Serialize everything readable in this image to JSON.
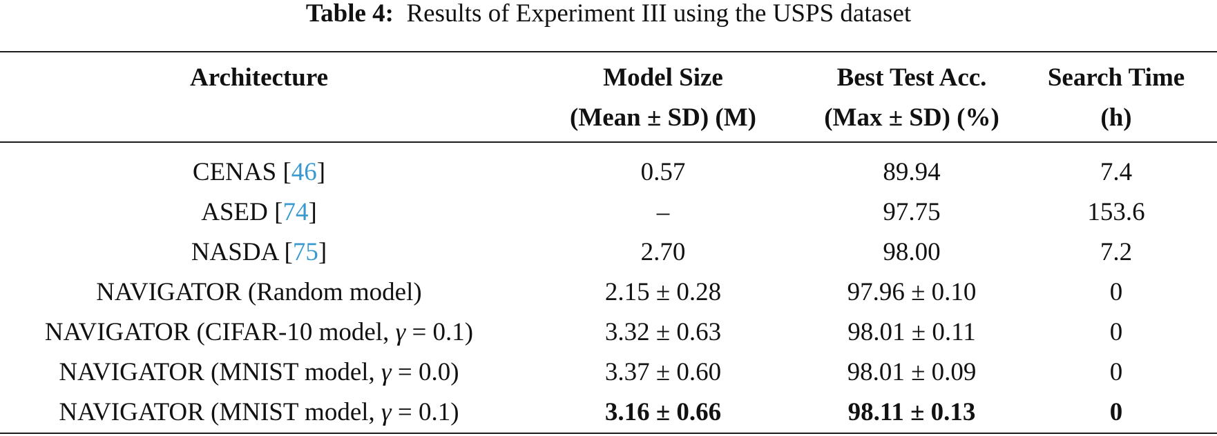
{
  "caption": {
    "label": "Table 4:",
    "text": "Results of Experiment III using the USPS dataset"
  },
  "headers": [
    {
      "line1": "Architecture",
      "line2": ""
    },
    {
      "line1": "Model Size",
      "line2": "(Mean ± SD) (M)"
    },
    {
      "line1": "Best Test Acc.",
      "line2": "(Max ± SD) (%)"
    },
    {
      "line1": "Search Time",
      "line2": "(h)"
    }
  ],
  "rows": [
    {
      "arch_name": "CENAS [",
      "cite": "46",
      "arch_suffix": "]",
      "model_size": "0.57",
      "best_acc": "89.94",
      "search_time": "7.4"
    },
    {
      "arch_name": "ASED [",
      "cite": "74",
      "arch_suffix": "]",
      "model_size": "–",
      "best_acc": "97.75",
      "search_time": "153.6"
    },
    {
      "arch_name": "NASDA [",
      "cite": "75",
      "arch_suffix": "]",
      "model_size": "2.70",
      "best_acc": "98.00",
      "search_time": "7.2"
    },
    {
      "arch_name": "NAVIGATOR (Random model)",
      "model_size": "2.15 ± 0.28",
      "best_acc": "97.96 ± 0.10",
      "search_time": "0"
    },
    {
      "arch_name": "NAVIGATOR (CIFAR-10 model, ",
      "gamma_symbol": "γ",
      "gamma_value": " = 0.1)",
      "model_size": "3.32 ± 0.63",
      "best_acc": "98.01 ± 0.11",
      "search_time": "0"
    },
    {
      "arch_name": "NAVIGATOR (MNIST model, ",
      "gamma_symbol": "γ",
      "gamma_value": " = 0.0)",
      "model_size": "3.37 ± 0.60",
      "best_acc": "98.01 ± 0.09",
      "search_time": "0"
    },
    {
      "arch_name": "NAVIGATOR (MNIST model, ",
      "gamma_symbol": "γ",
      "gamma_value": " = 0.1)",
      "model_size": "3.16 ± 0.66",
      "best_acc": "98.11 ± 0.13",
      "search_time": "0",
      "bold": true
    }
  ],
  "colors": {
    "citation": "#3a9ad0",
    "text": "#111111",
    "rule": "#1a1a1a"
  }
}
